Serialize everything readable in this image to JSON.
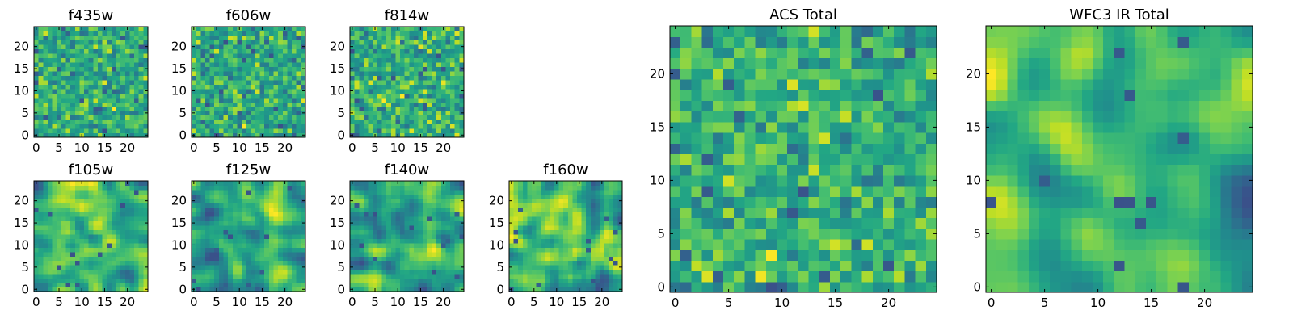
{
  "chart_data": [
    {
      "id": "f435w",
      "type": "heatmap",
      "title": "f435w",
      "grid_size": 25,
      "xticks": [
        0,
        5,
        10,
        15,
        20
      ],
      "yticks": [
        0,
        5,
        10,
        15,
        20
      ],
      "colormap": "viridis",
      "seed": 11,
      "smooth": 0
    },
    {
      "id": "f606w",
      "type": "heatmap",
      "title": "f606w",
      "grid_size": 25,
      "xticks": [
        0,
        5,
        10,
        15,
        20
      ],
      "yticks": [
        0,
        5,
        10,
        15,
        20
      ],
      "colormap": "viridis",
      "seed": 23,
      "smooth": 0
    },
    {
      "id": "f814w",
      "type": "heatmap",
      "title": "f814w",
      "grid_size": 25,
      "xticks": [
        0,
        5,
        10,
        15,
        20
      ],
      "yticks": [
        0,
        5,
        10,
        15,
        20
      ],
      "colormap": "viridis",
      "seed": 37,
      "smooth": 0
    },
    {
      "id": "f105w",
      "type": "heatmap",
      "title": "f105w",
      "grid_size": 25,
      "xticks": [
        0,
        5,
        10,
        15,
        20
      ],
      "yticks": [
        0,
        5,
        10,
        15,
        20
      ],
      "colormap": "viridis",
      "seed": 41,
      "smooth": 2
    },
    {
      "id": "f125w",
      "type": "heatmap",
      "title": "f125w",
      "grid_size": 25,
      "xticks": [
        0,
        5,
        10,
        15,
        20
      ],
      "yticks": [
        0,
        5,
        10,
        15,
        20
      ],
      "colormap": "viridis",
      "seed": 53,
      "smooth": 2
    },
    {
      "id": "f140w",
      "type": "heatmap",
      "title": "f140w",
      "grid_size": 25,
      "xticks": [
        0,
        5,
        10,
        15,
        20
      ],
      "yticks": [
        0,
        5,
        10,
        15,
        20
      ],
      "colormap": "viridis",
      "seed": 67,
      "smooth": 2
    },
    {
      "id": "f160w",
      "type": "heatmap",
      "title": "f160w",
      "grid_size": 25,
      "xticks": [
        0,
        5,
        10,
        15,
        20
      ],
      "yticks": [
        0,
        5,
        10,
        15,
        20
      ],
      "colormap": "viridis",
      "seed": 79,
      "smooth": 2
    },
    {
      "id": "acs_total",
      "type": "heatmap",
      "title": "ACS Total",
      "grid_size": 25,
      "xticks": [
        0,
        5,
        10,
        15,
        20
      ],
      "yticks": [
        0,
        5,
        10,
        15,
        20
      ],
      "colormap": "viridis",
      "seed": 97,
      "smooth": 0
    },
    {
      "id": "wfc3_ir_total",
      "type": "heatmap",
      "title": "WFC3 IR Total",
      "grid_size": 25,
      "xticks": [
        0,
        5,
        10,
        15,
        20
      ],
      "yticks": [
        0,
        5,
        10,
        15,
        20
      ],
      "colormap": "viridis",
      "seed": 131,
      "smooth": 3
    }
  ]
}
